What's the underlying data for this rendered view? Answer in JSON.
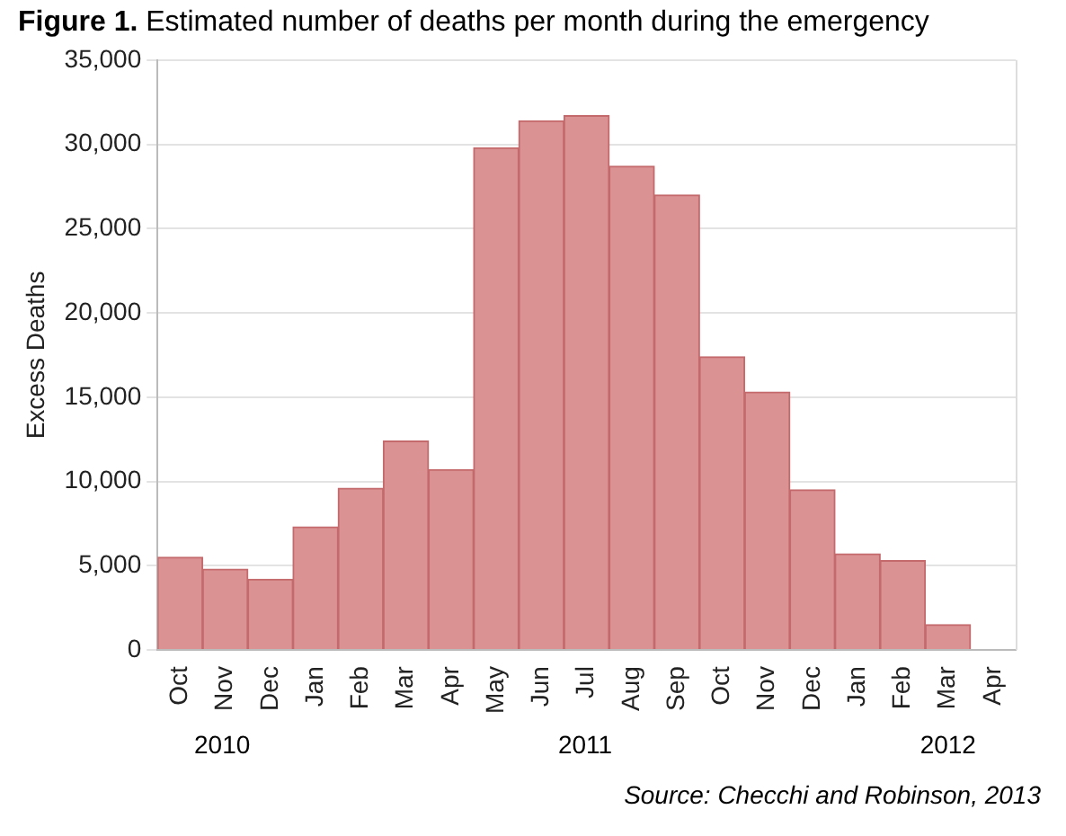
{
  "chart_data": {
    "type": "bar",
    "title": "Figure 1. Estimated number of deaths per month during the emergency",
    "ylabel": "Excess Deaths",
    "categories": [
      "Oct",
      "Nov",
      "Dec",
      "Jan",
      "Feb",
      "Mar",
      "Apr",
      "May",
      "Jun",
      "Jul",
      "Aug",
      "Sep",
      "Oct",
      "Nov",
      "Dec",
      "Jan",
      "Feb",
      "Mar",
      "Apr"
    ],
    "values": [
      5500,
      4800,
      4200,
      7300,
      9600,
      12400,
      10700,
      29800,
      31400,
      31700,
      28700,
      27000,
      17400,
      15300,
      9500,
      5700,
      5300,
      1500,
      null
    ],
    "color": "#db9293",
    "ylim": [
      0,
      35000
    ],
    "yticks": [
      {
        "value": 0,
        "label": "0"
      },
      {
        "value": 5000,
        "label": "5,000"
      },
      {
        "value": 10000,
        "label": "10,000"
      },
      {
        "value": 15000,
        "label": "15,000"
      },
      {
        "value": 20000,
        "label": "20,000"
      },
      {
        "value": 25000,
        "label": "25,000"
      },
      {
        "value": 30000,
        "label": "30,000"
      },
      {
        "value": 35000,
        "label": "35,000"
      }
    ],
    "grid": "y",
    "legend": false,
    "annotations": [
      "2010",
      "2011",
      "2012",
      "Source: Checchi and Robinson, 2013"
    ]
  }
}
